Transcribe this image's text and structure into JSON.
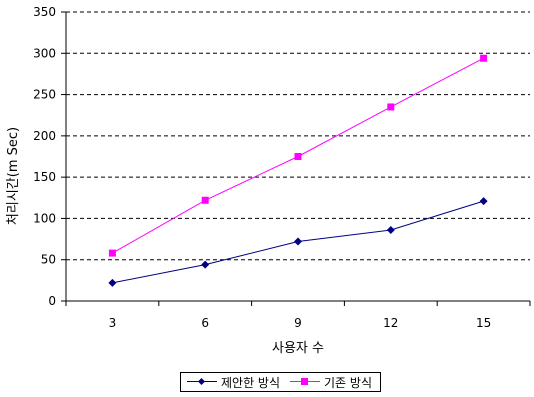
{
  "chart_data": {
    "type": "line",
    "categories": [
      "3",
      "6",
      "9",
      "12",
      "15"
    ],
    "x": [
      3,
      6,
      9,
      12,
      15
    ],
    "series": [
      {
        "name": "제안한 방식",
        "values": [
          22,
          44,
          72,
          86,
          121
        ],
        "color": "#000080",
        "marker": "diamond"
      },
      {
        "name": "기존 방식",
        "values": [
          58,
          122,
          175,
          235,
          294
        ],
        "color": "#FF00FF",
        "marker": "square"
      }
    ],
    "xlabel": "사용자 수",
    "ylabel": "처리시간(m Sec)",
    "ylim": [
      0,
      350
    ],
    "yticks": [
      0,
      50,
      100,
      150,
      200,
      250,
      300,
      350
    ],
    "grid": "horizontal dashed",
    "legend_position": "bottom"
  }
}
